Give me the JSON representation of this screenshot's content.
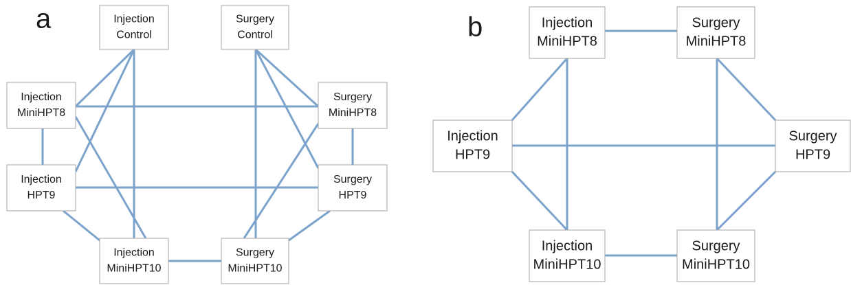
{
  "panels": [
    {
      "label": "a",
      "nodes": [
        {
          "lines": [
            "Injection",
            "Control"
          ]
        },
        {
          "lines": [
            "Surgery",
            "Control"
          ]
        },
        {
          "lines": [
            "Injection",
            "MiniHPT8"
          ]
        },
        {
          "lines": [
            "Surgery",
            "MiniHPT8"
          ]
        },
        {
          "lines": [
            "Injection",
            "HPT9"
          ]
        },
        {
          "lines": [
            "Surgery",
            "HPT9"
          ]
        },
        {
          "lines": [
            "Injection",
            "MiniHPT10"
          ]
        },
        {
          "lines": [
            "Surgery",
            "MiniHPT10"
          ]
        }
      ]
    },
    {
      "label": "b",
      "nodes": [
        {
          "lines": [
            "Injection",
            "MiniHPT8"
          ]
        },
        {
          "lines": [
            "Surgery",
            "MiniHPT8"
          ]
        },
        {
          "lines": [
            "Injection",
            "HPT9"
          ]
        },
        {
          "lines": [
            "Surgery",
            "HPT9"
          ]
        },
        {
          "lines": [
            "Injection",
            "MiniHPT10"
          ]
        },
        {
          "lines": [
            "Surgery",
            "MiniHPT10"
          ]
        }
      ]
    }
  ]
}
